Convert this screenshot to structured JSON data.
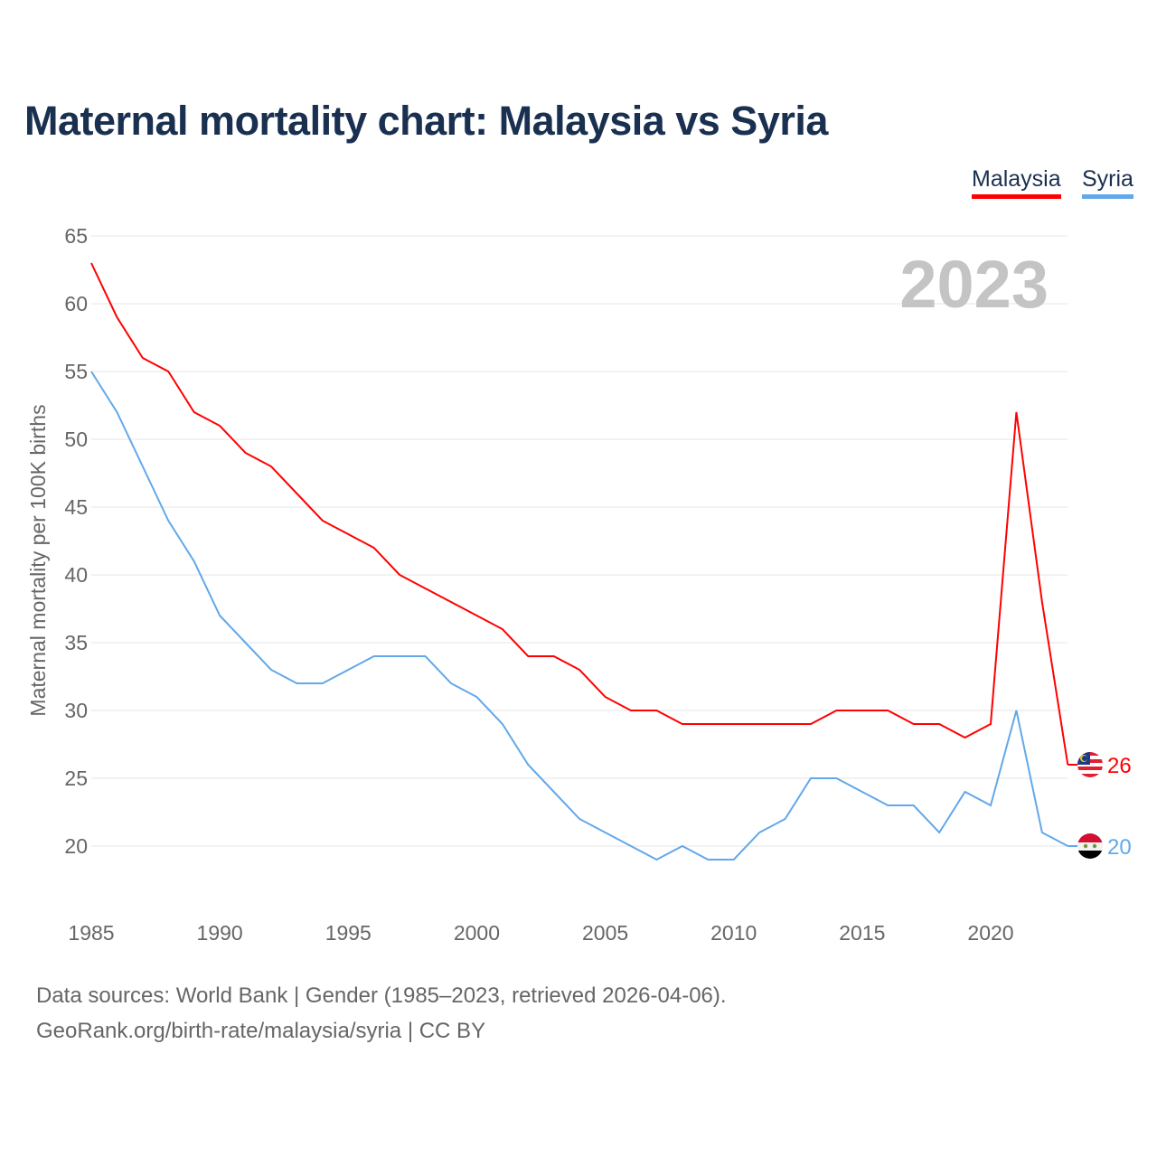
{
  "chart_data": {
    "type": "line",
    "title": "Maternal mortality chart: Malaysia vs Syria",
    "ylabel": "Maternal mortality per 100K births",
    "xlabel": "",
    "year_label": "2023",
    "ylim": [
      15,
      65
    ],
    "yticks": [
      20,
      25,
      30,
      35,
      40,
      45,
      50,
      55,
      60,
      65
    ],
    "xlim": [
      1985,
      2023
    ],
    "xticks": [
      1985,
      1990,
      1995,
      2000,
      2005,
      2010,
      2015,
      2020
    ],
    "grid": true,
    "legend_position": "top-right",
    "x": [
      1985,
      1986,
      1987,
      1988,
      1989,
      1990,
      1991,
      1992,
      1993,
      1994,
      1995,
      1996,
      1997,
      1998,
      1999,
      2000,
      2001,
      2002,
      2003,
      2004,
      2005,
      2006,
      2007,
      2008,
      2009,
      2010,
      2011,
      2012,
      2013,
      2014,
      2015,
      2016,
      2017,
      2018,
      2019,
      2020,
      2021,
      2022,
      2023
    ],
    "series": [
      {
        "name": "Malaysia",
        "color": "#ff0000",
        "end_label": "26",
        "values": [
          63,
          59,
          56,
          55,
          52,
          51,
          49,
          48,
          46,
          44,
          43,
          42,
          40,
          39,
          38,
          37,
          36,
          34,
          34,
          33,
          31,
          30,
          30,
          29,
          29,
          29,
          29,
          29,
          29,
          30,
          30,
          30,
          29,
          29,
          28,
          29,
          52,
          38,
          26
        ]
      },
      {
        "name": "Syria",
        "color": "#62a8ea",
        "end_label": "20",
        "values": [
          55,
          52,
          48,
          44,
          41,
          37,
          35,
          33,
          32,
          32,
          33,
          34,
          34,
          34,
          32,
          31,
          29,
          26,
          24,
          22,
          21,
          20,
          19,
          20,
          19,
          19,
          21,
          22,
          25,
          25,
          24,
          23,
          23,
          21,
          24,
          23,
          30,
          21,
          20
        ]
      }
    ]
  },
  "footer": {
    "line1": "Data sources: World Bank | Gender (1985–2023, retrieved 2026-04-06).",
    "line2": "GeoRank.org/birth-rate/malaysia/syria | CC BY"
  }
}
